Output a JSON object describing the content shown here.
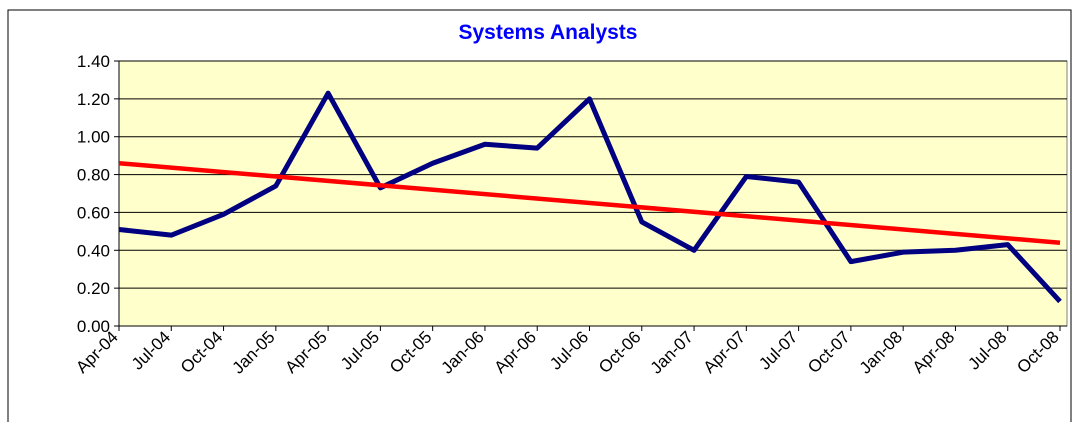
{
  "chart_data": {
    "type": "line",
    "title": "Systems Analysts",
    "categories": [
      "Apr-04",
      "Jul-04",
      "Oct-04",
      "Jan-05",
      "Apr-05",
      "Jul-05",
      "Oct-05",
      "Jan-06",
      "Apr-06",
      "Jul-06",
      "Oct-06",
      "Jan-07",
      "Apr-07",
      "Jul-07",
      "Oct-07",
      "Jan-08",
      "Apr-08",
      "Jul-08",
      "Oct-08"
    ],
    "series": [
      {
        "color": "#000080",
        "values": [
          0.51,
          0.48,
          0.59,
          0.74,
          1.23,
          0.73,
          0.86,
          0.96,
          0.94,
          1.2,
          0.55,
          0.4,
          0.79,
          0.76,
          0.34,
          0.39,
          0.4,
          0.43,
          0.13
        ]
      }
    ],
    "trendline": {
      "color": "#ff0000",
      "values": [
        0.86,
        0.44
      ]
    },
    "ylim": [
      0,
      1.4
    ],
    "yticks": [
      {
        "value": 0,
        "label": "0.00"
      },
      {
        "value": 0.2,
        "label": "0.20"
      },
      {
        "value": 0.4,
        "label": "0.40"
      },
      {
        "value": 0.6,
        "label": "0.60"
      },
      {
        "value": 0.8,
        "label": "0.80"
      },
      {
        "value": 1.0,
        "label": "1.00"
      },
      {
        "value": 1.2,
        "label": "1.20"
      },
      {
        "value": 1.4,
        "label": "1.40"
      }
    ],
    "grid": true,
    "plot_background": "#ffffcc"
  }
}
